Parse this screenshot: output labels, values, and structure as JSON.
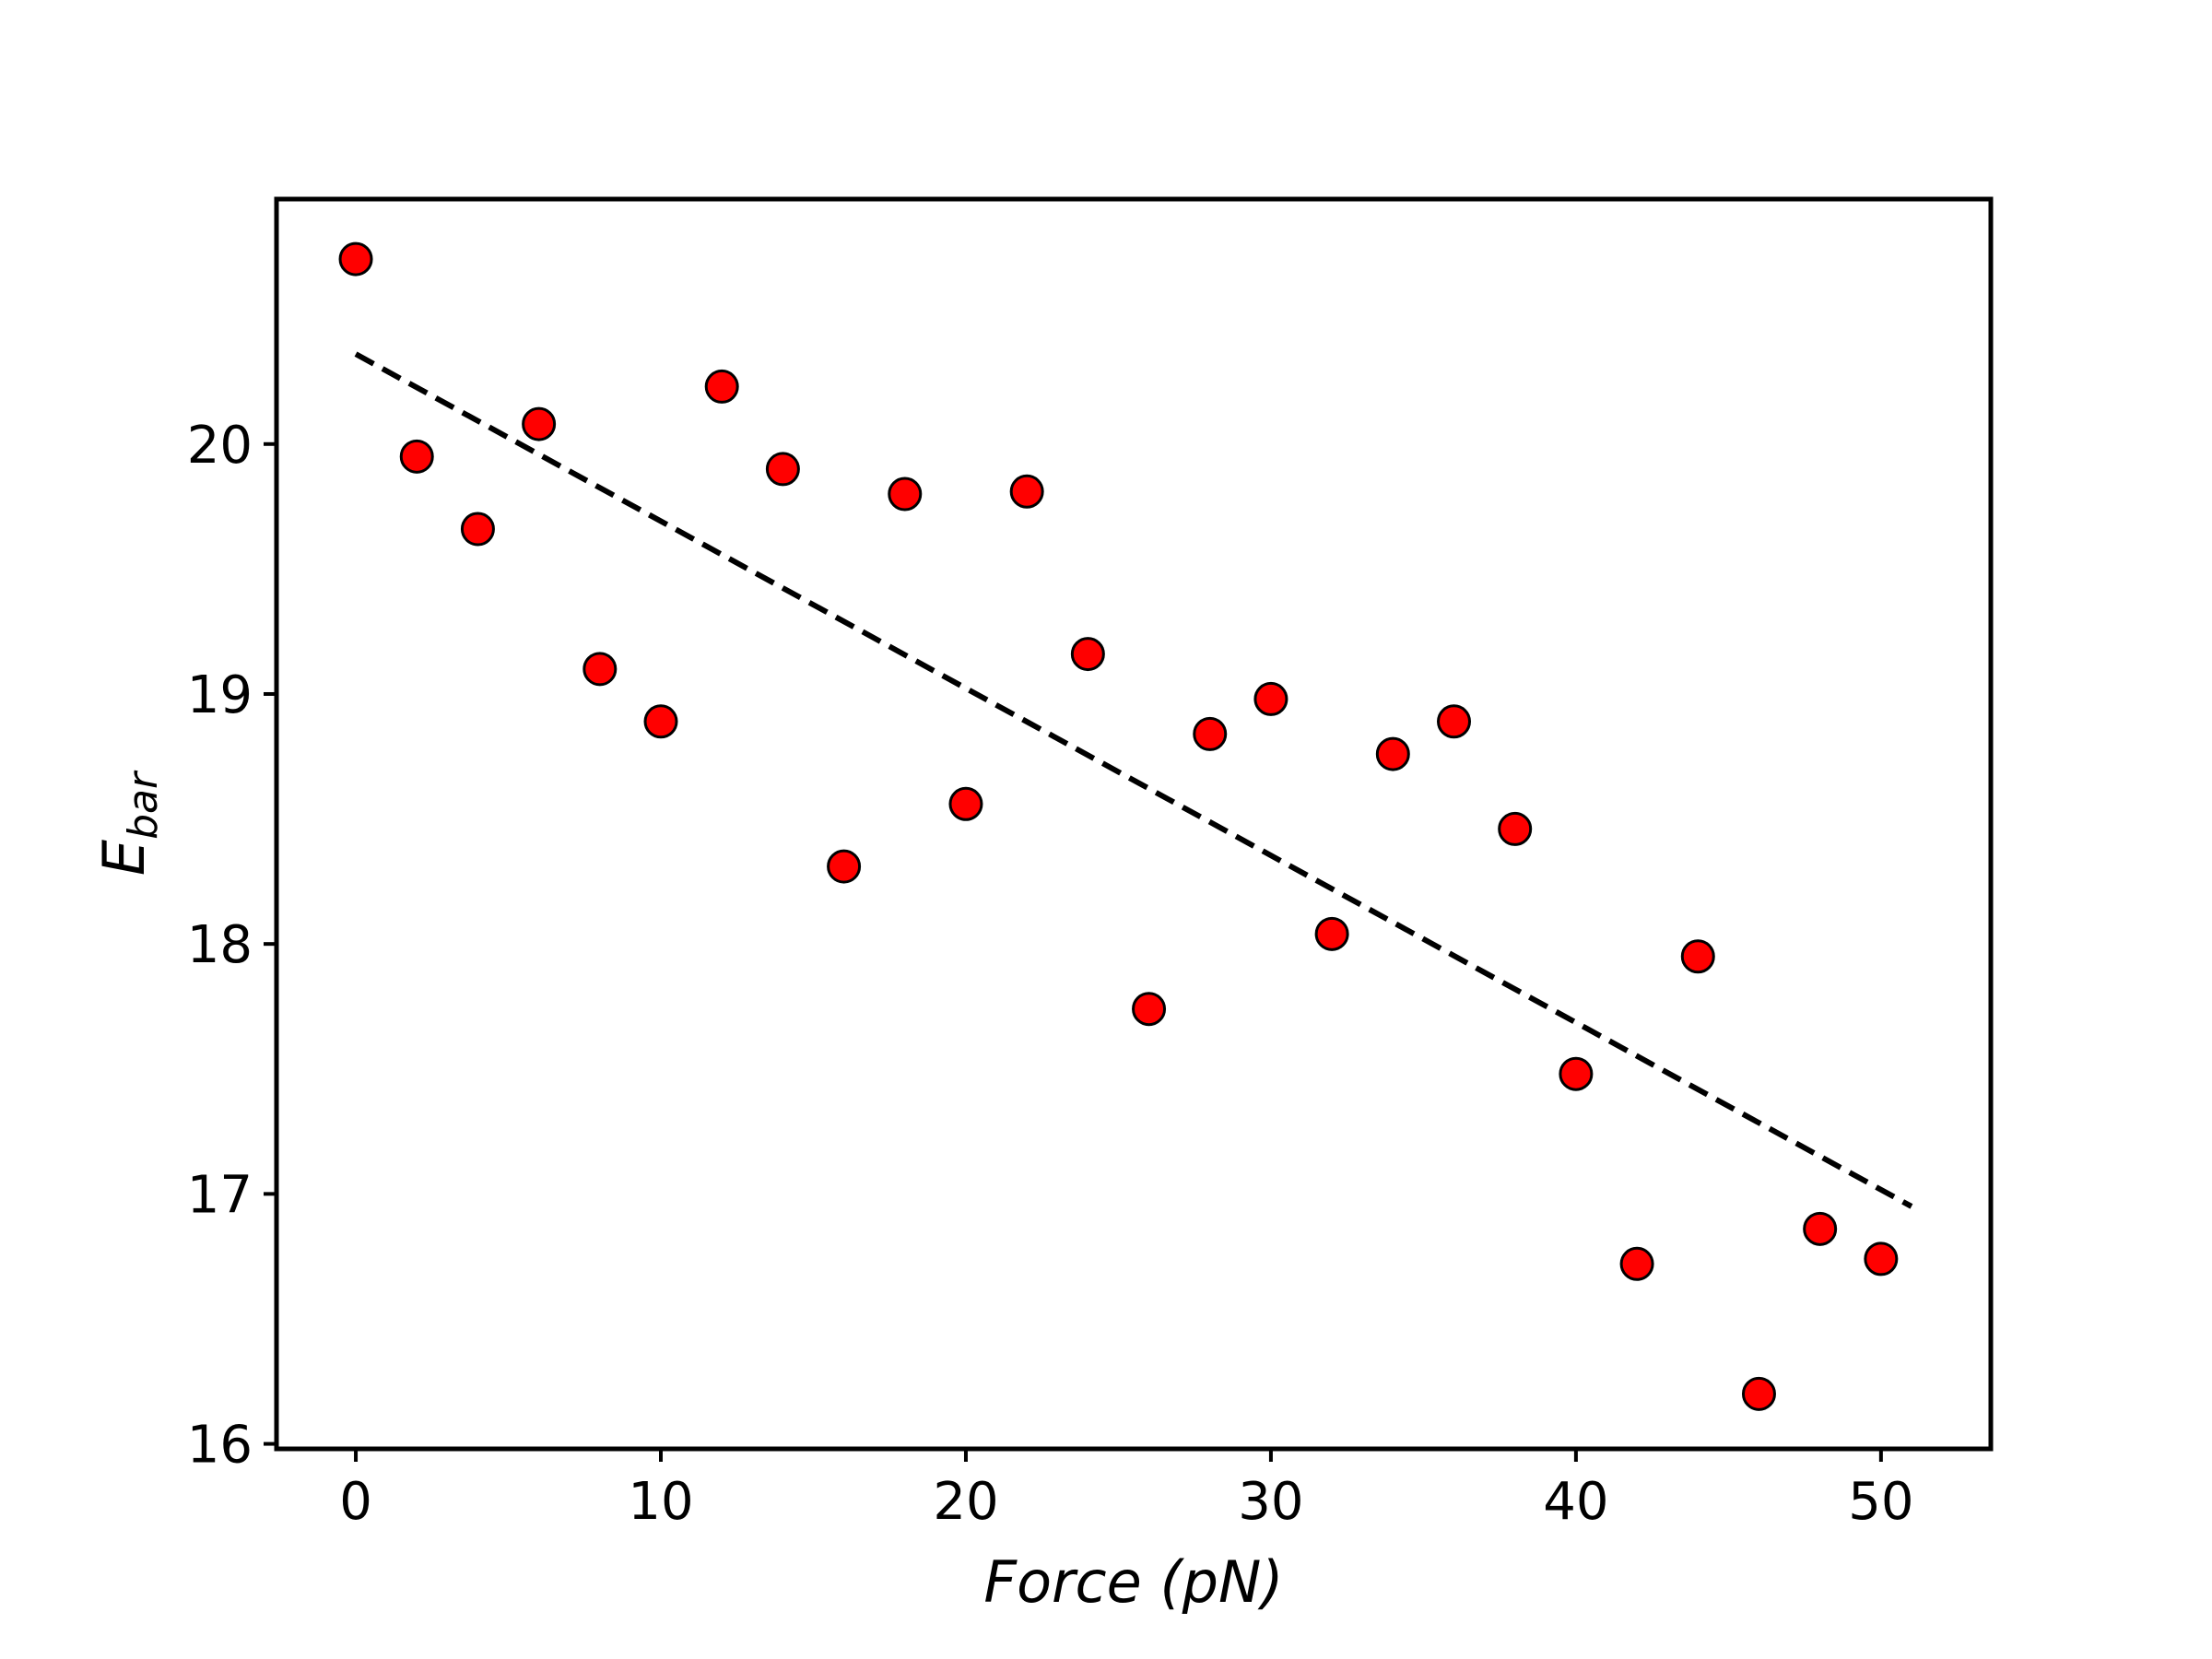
{
  "chart_data": {
    "type": "scatter",
    "xlabel": "Force (pN)",
    "ylabel": {
      "main": "E",
      "sub": "bar"
    },
    "xlim": [
      -2.6,
      53.6
    ],
    "ylim": [
      15.98,
      20.98
    ],
    "xticks": [
      0,
      10,
      20,
      30,
      40,
      50
    ],
    "yticks": [
      16,
      17,
      18,
      19,
      20
    ],
    "grid": false,
    "series": [
      {
        "marker_color": "#ff0000",
        "marker_edge": "#000000",
        "x": [
          0,
          2,
          4,
          6,
          8,
          10,
          12,
          14,
          16,
          18,
          20,
          22,
          24,
          26,
          28,
          30,
          32,
          34,
          36,
          38,
          40,
          42,
          44,
          46,
          48,
          50
        ],
        "y": [
          20.74,
          19.95,
          19.66,
          20.08,
          19.1,
          18.89,
          20.23,
          19.9,
          18.31,
          19.8,
          18.56,
          19.81,
          19.16,
          17.74,
          18.84,
          18.98,
          18.04,
          18.76,
          18.89,
          18.46,
          17.48,
          16.72,
          17.95,
          16.2,
          16.86,
          16.74
        ]
      }
    ],
    "fit_line": {
      "style": "dashed",
      "color": "#000000",
      "x": [
        0,
        51
      ],
      "y": [
        20.36,
        16.95
      ]
    }
  }
}
